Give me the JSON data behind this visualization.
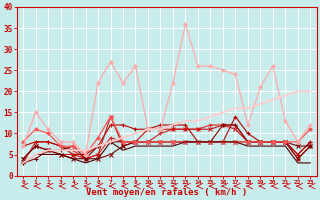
{
  "xlabel": "Vent moyen/en rafales ( km/h )",
  "bg_color": "#c8ecec",
  "grid_color": "#ffffff",
  "x_ticks": [
    0,
    1,
    2,
    3,
    4,
    5,
    6,
    7,
    8,
    9,
    10,
    11,
    12,
    13,
    14,
    15,
    16,
    17,
    18,
    19,
    20,
    21,
    22,
    23
  ],
  "ylim": [
    0,
    40
  ],
  "xlim": [
    -0.5,
    23.5
  ],
  "yticks": [
    0,
    5,
    10,
    15,
    20,
    25,
    30,
    35,
    40
  ],
  "series": [
    {
      "y": [
        3,
        8,
        8,
        7,
        6,
        4,
        5,
        9,
        8,
        8,
        8,
        10,
        11,
        11,
        11,
        12,
        12,
        12,
        8,
        8,
        8,
        8,
        5,
        8
      ],
      "color": "#dd2222",
      "lw": 0.8,
      "marker": "+",
      "ms": 3,
      "mew": 0.8
    },
    {
      "y": [
        7,
        8,
        8,
        7,
        5,
        5,
        7,
        12,
        12,
        11,
        11,
        12,
        12,
        12,
        8,
        8,
        8,
        14,
        10,
        8,
        8,
        8,
        5,
        8
      ],
      "color": "#bb0000",
      "lw": 0.8,
      "marker": "+",
      "ms": 3,
      "mew": 0.8
    },
    {
      "y": [
        4,
        7,
        6,
        5,
        5,
        4,
        5,
        14,
        7,
        8,
        11,
        11,
        11,
        11,
        11,
        11,
        12,
        11,
        8,
        8,
        8,
        8,
        4,
        7
      ],
      "color": "#cc1111",
      "lw": 0.8,
      "marker": "x",
      "ms": 2.5,
      "mew": 0.7
    },
    {
      "y": [
        3,
        4,
        6,
        6,
        7,
        4,
        7,
        8,
        8,
        8,
        8,
        8,
        8,
        8,
        8,
        8,
        12,
        12,
        8,
        8,
        8,
        8,
        4,
        7
      ],
      "color": "#880000",
      "lw": 0.8,
      "marker": "+",
      "ms": 3,
      "mew": 0.8
    },
    {
      "y": [
        4,
        7,
        6,
        5,
        4,
        4,
        4,
        5,
        7,
        8,
        8,
        8,
        8,
        8,
        8,
        8,
        8,
        8,
        8,
        8,
        8,
        8,
        7,
        7
      ],
      "color": "#770000",
      "lw": 0.8,
      "marker": "x",
      "ms": 2.5,
      "mew": 0.7
    },
    {
      "y": [
        8,
        11,
        10,
        7,
        7,
        5,
        9,
        14,
        8,
        8,
        8,
        8,
        8,
        8,
        8,
        8,
        8,
        8,
        8,
        8,
        8,
        8,
        8,
        11
      ],
      "color": "#ff5555",
      "lw": 0.9,
      "marker": "D",
      "ms": 2,
      "mew": 0.5
    },
    {
      "y": [
        7,
        15,
        11,
        8,
        8,
        5,
        22,
        27,
        22,
        26,
        11,
        11,
        22,
        36,
        26,
        26,
        25,
        24,
        12,
        21,
        26,
        13,
        8,
        12
      ],
      "color": "#ffaaaa",
      "lw": 0.9,
      "marker": "D",
      "ms": 2,
      "mew": 0.5
    },
    {
      "y": [
        3,
        5,
        5,
        5,
        4,
        3,
        4,
        8,
        6,
        7,
        7,
        7,
        7,
        8,
        8,
        8,
        8,
        8,
        7,
        7,
        7,
        7,
        3,
        3
      ],
      "color": "#550000",
      "lw": 0.8,
      "marker": null,
      "ms": 0,
      "mew": 0
    },
    {
      "y": [
        3,
        5,
        6,
        6,
        6,
        6,
        7,
        8,
        9,
        10,
        11,
        11,
        12,
        13,
        13,
        14,
        15,
        16,
        16,
        17,
        18,
        19,
        20,
        20
      ],
      "color": "#ffcccc",
      "lw": 1.3,
      "marker": null,
      "ms": 0,
      "mew": 0
    }
  ]
}
